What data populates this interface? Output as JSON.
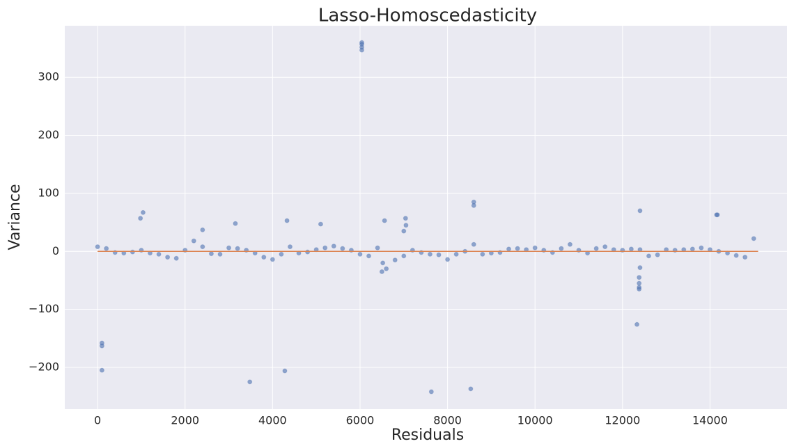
{
  "chart_data": {
    "type": "scatter",
    "title": "Lasso-Homoscedasticity",
    "x_label": "Residuals",
    "y_label": "Variance",
    "xlim": [
      -750,
      15760
    ],
    "ylim": [
      -272,
      389
    ],
    "xticks": [
      0,
      2000,
      4000,
      6000,
      8000,
      10000,
      12000,
      14000
    ],
    "yticks": [
      {
        "value": -200,
        "label": "−200"
      },
      {
        "value": -100,
        "label": "−100"
      },
      0,
      100,
      200,
      300
    ],
    "grid": true,
    "series": [
      {
        "color": "#4c72b0",
        "x": [
          0,
          200,
          400,
          600,
          800,
          1000,
          1200,
          1400,
          1600,
          1800,
          2000,
          2200,
          2400,
          2600,
          2800,
          3000,
          3200,
          3400,
          3600,
          3800,
          4000,
          4200,
          4400,
          4600,
          4800,
          5000,
          5200,
          5400,
          5600,
          5800,
          6000,
          6200,
          6400,
          6600,
          6800,
          7000,
          7200,
          7400,
          7600,
          7800,
          8000,
          8200,
          8400,
          8600,
          8800,
          9000,
          9200,
          9400,
          9600,
          9800,
          10000,
          10200,
          10400,
          10600,
          10800,
          11000,
          11200,
          11400,
          11600,
          11800,
          12000,
          12200,
          12400,
          12600,
          12800,
          13000,
          13200,
          13400,
          13600,
          13800,
          14000,
          14200,
          14400,
          14600,
          14800,
          15000,
          6500,
          6520,
          7000,
          7050,
          100,
          100,
          100,
          3480,
          4280,
          7630,
          8530,
          12330,
          6040,
          6040,
          6040,
          6040,
          12380,
          12380,
          12380,
          12380,
          12400,
          12400,
          8600,
          8600,
          1040,
          14150,
          14170,
          7040,
          4330,
          6560,
          980,
          2400,
          3150,
          5100
        ],
        "values": [
          8,
          5,
          -2,
          -3,
          -1,
          2,
          -3,
          -5,
          -10,
          -12,
          2,
          18,
          8,
          -4,
          -5,
          6,
          5,
          2,
          -3,
          -10,
          -14,
          -5,
          8,
          -3,
          -1,
          3,
          6,
          9,
          5,
          2,
          -5,
          -8,
          6,
          -30,
          -15,
          -8,
          2,
          -2,
          -5,
          -6,
          -14,
          -5,
          0,
          12,
          -5,
          -3,
          -2,
          4,
          5,
          3,
          6,
          2,
          -2,
          5,
          12,
          2,
          -3,
          5,
          8,
          3,
          2,
          4,
          3,
          -8,
          -6,
          3,
          2,
          3,
          4,
          6,
          3,
          0,
          -3,
          -7,
          -10,
          22,
          -35,
          -20,
          35,
          45,
          -158,
          -163,
          -205,
          -225,
          -206,
          -242,
          -237,
          -126,
          357,
          352,
          347,
          360,
          -45,
          -55,
          -62,
          -65,
          -28,
          70,
          85,
          79,
          67,
          63,
          63,
          57,
          53,
          53,
          57,
          37,
          48,
          47
        ]
      },
      {
        "type": "line",
        "color": "#dd8452",
        "x": [
          0,
          15100
        ],
        "values": [
          0,
          0
        ]
      }
    ]
  }
}
